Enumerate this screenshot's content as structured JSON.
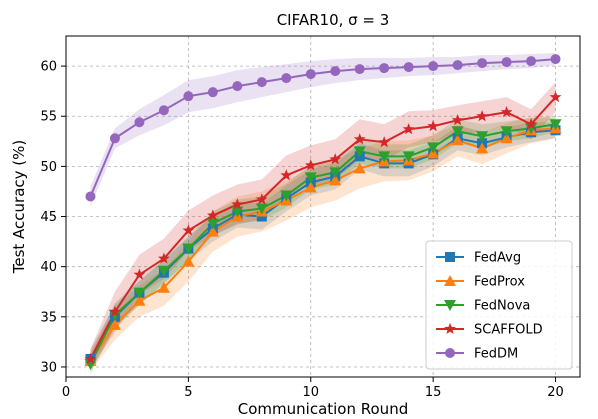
{
  "chart_data": {
    "type": "line",
    "title": "CIFAR10, σ = 3",
    "xlabel": "Communication Round",
    "ylabel": "Test Accuracy (%)",
    "xlim": [
      0,
      21
    ],
    "ylim": [
      29,
      63
    ],
    "xticks": [
      0,
      5,
      10,
      15,
      20
    ],
    "yticks": [
      30,
      35,
      40,
      45,
      50,
      55,
      60
    ],
    "grid": true,
    "legend_position": "lower-right",
    "x": [
      1,
      2,
      3,
      4,
      5,
      6,
      7,
      8,
      9,
      10,
      11,
      12,
      13,
      14,
      15,
      16,
      17,
      18,
      19,
      20
    ],
    "series": [
      {
        "name": "FedAvg",
        "color": "#1f77b4",
        "marker": "square",
        "values": [
          30.8,
          35.0,
          37.4,
          39.4,
          41.8,
          43.8,
          45.2,
          45.0,
          46.8,
          48.4,
          49.0,
          51.0,
          50.3,
          50.3,
          51.2,
          52.8,
          52.3,
          52.9,
          53.4,
          53.6
        ],
        "band": [
          1.0,
          1.2,
          1.2,
          1.2,
          1.2,
          1.3,
          1.3,
          1.3,
          1.3,
          1.3,
          1.3,
          1.3,
          1.3,
          1.3,
          1.2,
          1.2,
          1.2,
          1.0,
          1.0,
          0.8
        ]
      },
      {
        "name": "FedProx",
        "color": "#ff7f0e",
        "marker": "triangle-up",
        "values": [
          30.6,
          34.2,
          36.6,
          37.9,
          40.5,
          43.5,
          45.0,
          45.5,
          46.6,
          47.9,
          48.6,
          49.8,
          50.5,
          50.6,
          51.3,
          52.6,
          51.8,
          52.8,
          53.6,
          53.8
        ],
        "band": [
          1.0,
          1.5,
          1.6,
          1.8,
          2.0,
          2.0,
          2.0,
          2.0,
          2.0,
          2.0,
          2.0,
          2.0,
          2.0,
          2.0,
          1.8,
          1.6,
          1.6,
          1.5,
          1.3,
          1.0
        ]
      },
      {
        "name": "FedNova",
        "color": "#2ca02c",
        "marker": "triangle-down",
        "values": [
          30.3,
          35.2,
          37.4,
          39.6,
          41.8,
          44.3,
          45.5,
          45.8,
          47.1,
          48.9,
          49.4,
          51.5,
          51.0,
          51.0,
          51.9,
          53.5,
          53.0,
          53.5,
          53.8,
          54.2
        ],
        "band": [
          1.0,
          1.2,
          1.2,
          1.2,
          1.2,
          1.2,
          1.2,
          1.2,
          1.2,
          1.2,
          1.2,
          1.2,
          1.2,
          1.2,
          1.2,
          1.2,
          1.2,
          1.0,
          1.0,
          0.8
        ]
      },
      {
        "name": "SCAFFOLD",
        "color": "#d62728",
        "marker": "star",
        "values": [
          30.8,
          35.5,
          39.2,
          40.8,
          43.6,
          45.1,
          46.2,
          46.7,
          49.1,
          50.1,
          50.7,
          52.7,
          52.4,
          53.7,
          54.0,
          54.6,
          55.0,
          55.4,
          54.2,
          56.9
        ],
        "band": [
          1.0,
          2.0,
          2.0,
          2.0,
          2.0,
          2.0,
          2.0,
          2.0,
          2.0,
          2.0,
          2.0,
          2.0,
          1.8,
          1.8,
          1.6,
          1.5,
          1.5,
          1.5,
          1.5,
          1.5
        ]
      },
      {
        "name": "FedDM",
        "color": "#9467bd",
        "marker": "circle",
        "values": [
          47.0,
          52.8,
          54.4,
          55.6,
          57.0,
          57.4,
          58.0,
          58.4,
          58.8,
          59.2,
          59.5,
          59.7,
          59.8,
          59.9,
          60.0,
          60.1,
          60.3,
          60.4,
          60.5,
          60.7
        ],
        "band": [
          1.0,
          1.0,
          1.3,
          1.5,
          1.6,
          1.6,
          1.6,
          1.5,
          1.4,
          1.3,
          1.2,
          1.1,
          1.0,
          0.9,
          0.9,
          0.8,
          0.8,
          0.7,
          0.7,
          0.6
        ]
      }
    ]
  }
}
